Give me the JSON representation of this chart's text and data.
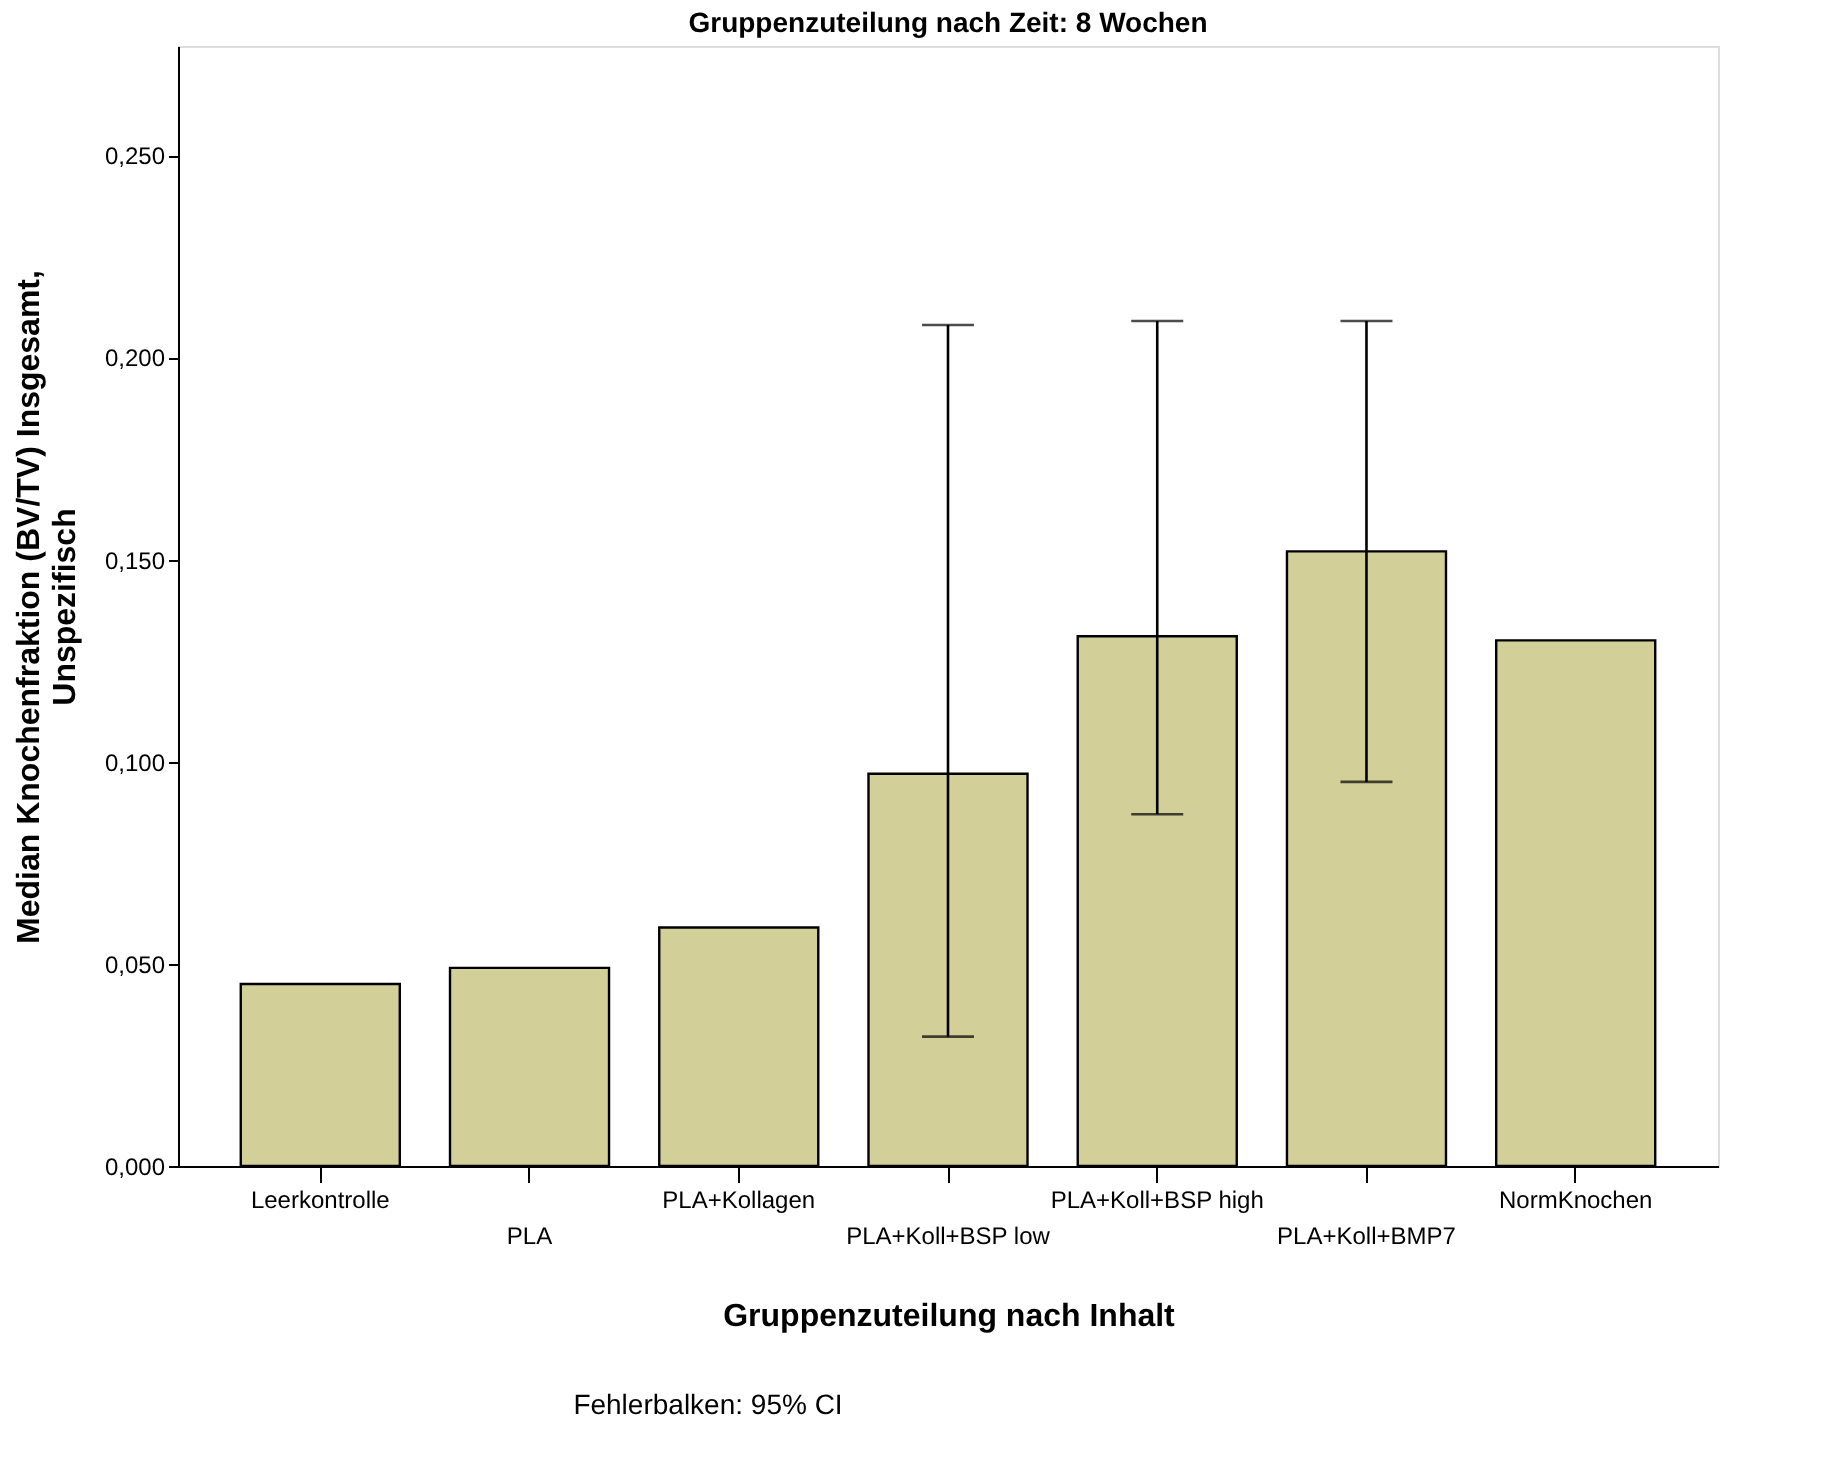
{
  "chart_data": {
    "type": "bar",
    "title": "Gruppenzuteilung nach Zeit: 8 Wochen",
    "xlabel": "Gruppenzuteilung nach Inhalt",
    "ylabel": "Median Knochenfraktion (BV/TV) Insgesamt,\nUnspezifisch",
    "categories": [
      "Leerkontrolle",
      "PLA",
      "PLA+Kollagen",
      "PLA+Koll+BSP low",
      "PLA+Koll+BSP high",
      "PLA+Koll+BMP7",
      "NormKnochen"
    ],
    "values": [
      0.045,
      0.049,
      0.059,
      0.097,
      0.131,
      0.152,
      0.13
    ],
    "errors": [
      null,
      null,
      null,
      [
        0.032,
        0.208
      ],
      [
        0.087,
        0.209
      ],
      [
        0.095,
        0.209
      ],
      null
    ],
    "color": "#d3cf98",
    "ylim": [
      0,
      0.277
    ],
    "yticks": [
      {
        "value": 0,
        "label": "0,000"
      },
      {
        "value": 0.05,
        "label": "0,050"
      },
      {
        "value": 0.1,
        "label": "0,100"
      },
      {
        "value": 0.15,
        "label": "0,150"
      },
      {
        "value": 0.2,
        "label": "0,200"
      },
      {
        "value": 0.25,
        "label": "0,250"
      }
    ],
    "grid": false,
    "annotations": [
      "Fehlerbalken: 95% CI"
    ]
  }
}
